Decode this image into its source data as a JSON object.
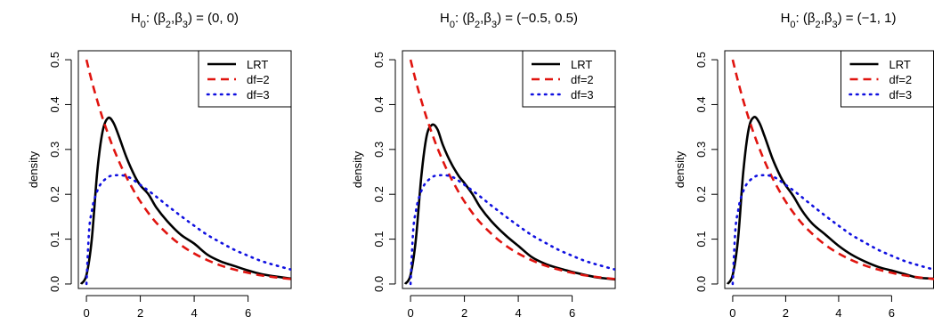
{
  "chart_data": [
    {
      "type": "line",
      "title_parts": {
        "h": "H",
        "h_sub": "0",
        "mid": ": (",
        "b2": "β",
        "b2_sub": "2",
        "comma": ",",
        "b3": "β",
        "b3_sub": "3",
        "eq": ") = (0, 0)"
      },
      "ylabel": "density",
      "xlim": [
        -0.3,
        7.6
      ],
      "ylim": [
        -0.01,
        0.52
      ],
      "x_ticks": [
        0,
        2,
        4,
        6
      ],
      "x_tick_labels": [
        "0",
        "2",
        "4",
        "6"
      ],
      "y_ticks": [
        0.0,
        0.1,
        0.2,
        0.3,
        0.4,
        0.5
      ],
      "y_tick_labels": [
        "0.0",
        "0.1",
        "0.2",
        "0.3",
        "0.4",
        "0.5"
      ],
      "legend_position": "top-right",
      "series": [
        {
          "name": "LRT",
          "color": "#000000",
          "dash": "solid",
          "x": [
            -0.2,
            0.0,
            0.2,
            0.4,
            0.6,
            0.8,
            1.0,
            1.2,
            1.5,
            1.8,
            2.0,
            2.3,
            2.6,
            3.0,
            3.5,
            4.0,
            4.5,
            5.0,
            5.5,
            6.0,
            6.5,
            7.0,
            7.6
          ],
          "y": [
            0.0,
            0.02,
            0.1,
            0.25,
            0.34,
            0.37,
            0.36,
            0.33,
            0.28,
            0.24,
            0.22,
            0.2,
            0.17,
            0.14,
            0.11,
            0.09,
            0.065,
            0.05,
            0.04,
            0.03,
            0.022,
            0.017,
            0.012
          ]
        },
        {
          "name": "df=2",
          "color": "#e0140f",
          "dash": "dashed",
          "x": [
            0.0,
            0.2,
            0.4,
            0.6,
            0.8,
            1.0,
            1.3,
            1.6,
            2.0,
            2.5,
            3.0,
            3.5,
            4.0,
            4.5,
            5.0,
            5.5,
            6.0,
            6.5,
            7.0,
            7.6
          ],
          "y": [
            0.5,
            0.452,
            0.409,
            0.37,
            0.335,
            0.303,
            0.261,
            0.225,
            0.184,
            0.143,
            0.112,
            0.087,
            0.068,
            0.053,
            0.041,
            0.032,
            0.025,
            0.019,
            0.015,
            0.011
          ]
        },
        {
          "name": "df=3",
          "color": "#1010e0",
          "dash": "dotted",
          "x": [
            0.0,
            0.1,
            0.2,
            0.3,
            0.5,
            0.75,
            1.0,
            1.5,
            2.0,
            2.5,
            3.0,
            3.5,
            4.0,
            4.5,
            5.0,
            5.5,
            6.0,
            6.5,
            7.0,
            7.6
          ],
          "y": [
            0.0,
            0.12,
            0.162,
            0.19,
            0.22,
            0.236,
            0.242,
            0.24,
            0.221,
            0.199,
            0.175,
            0.152,
            0.13,
            0.109,
            0.092,
            0.076,
            0.063,
            0.051,
            0.042,
            0.032
          ]
        }
      ]
    },
    {
      "type": "line",
      "title_parts": {
        "h": "H",
        "h_sub": "0",
        "mid": ": (",
        "b2": "β",
        "b2_sub": "2",
        "comma": ",",
        "b3": "β",
        "b3_sub": "3",
        "eq": ") = (−0.5, 0.5)"
      },
      "ylabel": "density",
      "xlim": [
        -0.3,
        7.6
      ],
      "ylim": [
        -0.01,
        0.52
      ],
      "x_ticks": [
        0,
        2,
        4,
        6
      ],
      "x_tick_labels": [
        "0",
        "2",
        "4",
        "6"
      ],
      "y_ticks": [
        0.0,
        0.1,
        0.2,
        0.3,
        0.4,
        0.5
      ],
      "y_tick_labels": [
        "0.0",
        "0.1",
        "0.2",
        "0.3",
        "0.4",
        "0.5"
      ],
      "legend_position": "top-right",
      "series": [
        {
          "name": "LRT",
          "color": "#000000",
          "dash": "solid",
          "x": [
            -0.2,
            0.0,
            0.2,
            0.4,
            0.6,
            0.8,
            1.0,
            1.2,
            1.5,
            1.8,
            2.0,
            2.3,
            2.6,
            3.0,
            3.5,
            4.0,
            4.5,
            5.0,
            5.5,
            6.0,
            6.5,
            7.0,
            7.6
          ],
          "y": [
            0.0,
            0.02,
            0.1,
            0.24,
            0.33,
            0.355,
            0.345,
            0.31,
            0.27,
            0.24,
            0.225,
            0.2,
            0.17,
            0.14,
            0.11,
            0.085,
            0.06,
            0.045,
            0.035,
            0.027,
            0.02,
            0.014,
            0.01
          ]
        },
        {
          "name": "df=2",
          "color": "#e0140f",
          "dash": "dashed",
          "x": [
            0.0,
            0.2,
            0.4,
            0.6,
            0.8,
            1.0,
            1.3,
            1.6,
            2.0,
            2.5,
            3.0,
            3.5,
            4.0,
            4.5,
            5.0,
            5.5,
            6.0,
            6.5,
            7.0,
            7.6
          ],
          "y": [
            0.5,
            0.452,
            0.409,
            0.37,
            0.335,
            0.303,
            0.261,
            0.225,
            0.184,
            0.143,
            0.112,
            0.087,
            0.068,
            0.053,
            0.041,
            0.032,
            0.025,
            0.019,
            0.015,
            0.011
          ]
        },
        {
          "name": "df=3",
          "color": "#1010e0",
          "dash": "dotted",
          "x": [
            0.0,
            0.1,
            0.2,
            0.3,
            0.5,
            0.75,
            1.0,
            1.5,
            2.0,
            2.5,
            3.0,
            3.5,
            4.0,
            4.5,
            5.0,
            5.5,
            6.0,
            6.5,
            7.0,
            7.6
          ],
          "y": [
            0.0,
            0.12,
            0.162,
            0.19,
            0.22,
            0.236,
            0.242,
            0.24,
            0.221,
            0.199,
            0.175,
            0.152,
            0.13,
            0.109,
            0.092,
            0.076,
            0.063,
            0.051,
            0.042,
            0.032
          ]
        }
      ]
    },
    {
      "type": "line",
      "title_parts": {
        "h": "H",
        "h_sub": "0",
        "mid": ": (",
        "b2": "β",
        "b2_sub": "2",
        "comma": ",",
        "b3": "β",
        "b3_sub": "3",
        "eq": ") = (−1, 1)"
      },
      "ylabel": "density",
      "xlim": [
        -0.3,
        7.6
      ],
      "ylim": [
        -0.01,
        0.52
      ],
      "x_ticks": [
        0,
        2,
        4,
        6
      ],
      "x_tick_labels": [
        "0",
        "2",
        "4",
        "6"
      ],
      "y_ticks": [
        0.0,
        0.1,
        0.2,
        0.3,
        0.4,
        0.5
      ],
      "y_tick_labels": [
        "0.0",
        "0.1",
        "0.2",
        "0.3",
        "0.4",
        "0.5"
      ],
      "legend_position": "top-right",
      "series": [
        {
          "name": "LRT",
          "color": "#000000",
          "dash": "solid",
          "x": [
            -0.2,
            0.0,
            0.2,
            0.4,
            0.6,
            0.8,
            1.0,
            1.2,
            1.5,
            1.8,
            2.0,
            2.3,
            2.6,
            3.0,
            3.5,
            4.0,
            4.5,
            5.0,
            5.5,
            6.0,
            6.5,
            7.0,
            7.6
          ],
          "y": [
            0.0,
            0.02,
            0.1,
            0.25,
            0.345,
            0.372,
            0.36,
            0.33,
            0.28,
            0.24,
            0.22,
            0.195,
            0.165,
            0.135,
            0.11,
            0.085,
            0.065,
            0.05,
            0.038,
            0.03,
            0.022,
            0.014,
            0.012
          ]
        },
        {
          "name": "df=2",
          "color": "#e0140f",
          "dash": "dashed",
          "x": [
            0.0,
            0.2,
            0.4,
            0.6,
            0.8,
            1.0,
            1.3,
            1.6,
            2.0,
            2.5,
            3.0,
            3.5,
            4.0,
            4.5,
            5.0,
            5.5,
            6.0,
            6.5,
            7.0,
            7.6
          ],
          "y": [
            0.5,
            0.452,
            0.409,
            0.37,
            0.335,
            0.303,
            0.261,
            0.225,
            0.184,
            0.143,
            0.112,
            0.087,
            0.068,
            0.053,
            0.041,
            0.032,
            0.025,
            0.019,
            0.015,
            0.011
          ]
        },
        {
          "name": "df=3",
          "color": "#1010e0",
          "dash": "dotted",
          "x": [
            0.0,
            0.1,
            0.2,
            0.3,
            0.5,
            0.75,
            1.0,
            1.5,
            2.0,
            2.5,
            3.0,
            3.5,
            4.0,
            4.5,
            5.0,
            5.5,
            6.0,
            6.5,
            7.0,
            7.6
          ],
          "y": [
            0.0,
            0.12,
            0.162,
            0.19,
            0.22,
            0.236,
            0.242,
            0.24,
            0.221,
            0.199,
            0.175,
            0.152,
            0.13,
            0.109,
            0.092,
            0.076,
            0.063,
            0.051,
            0.042,
            0.032
          ]
        }
      ]
    }
  ]
}
